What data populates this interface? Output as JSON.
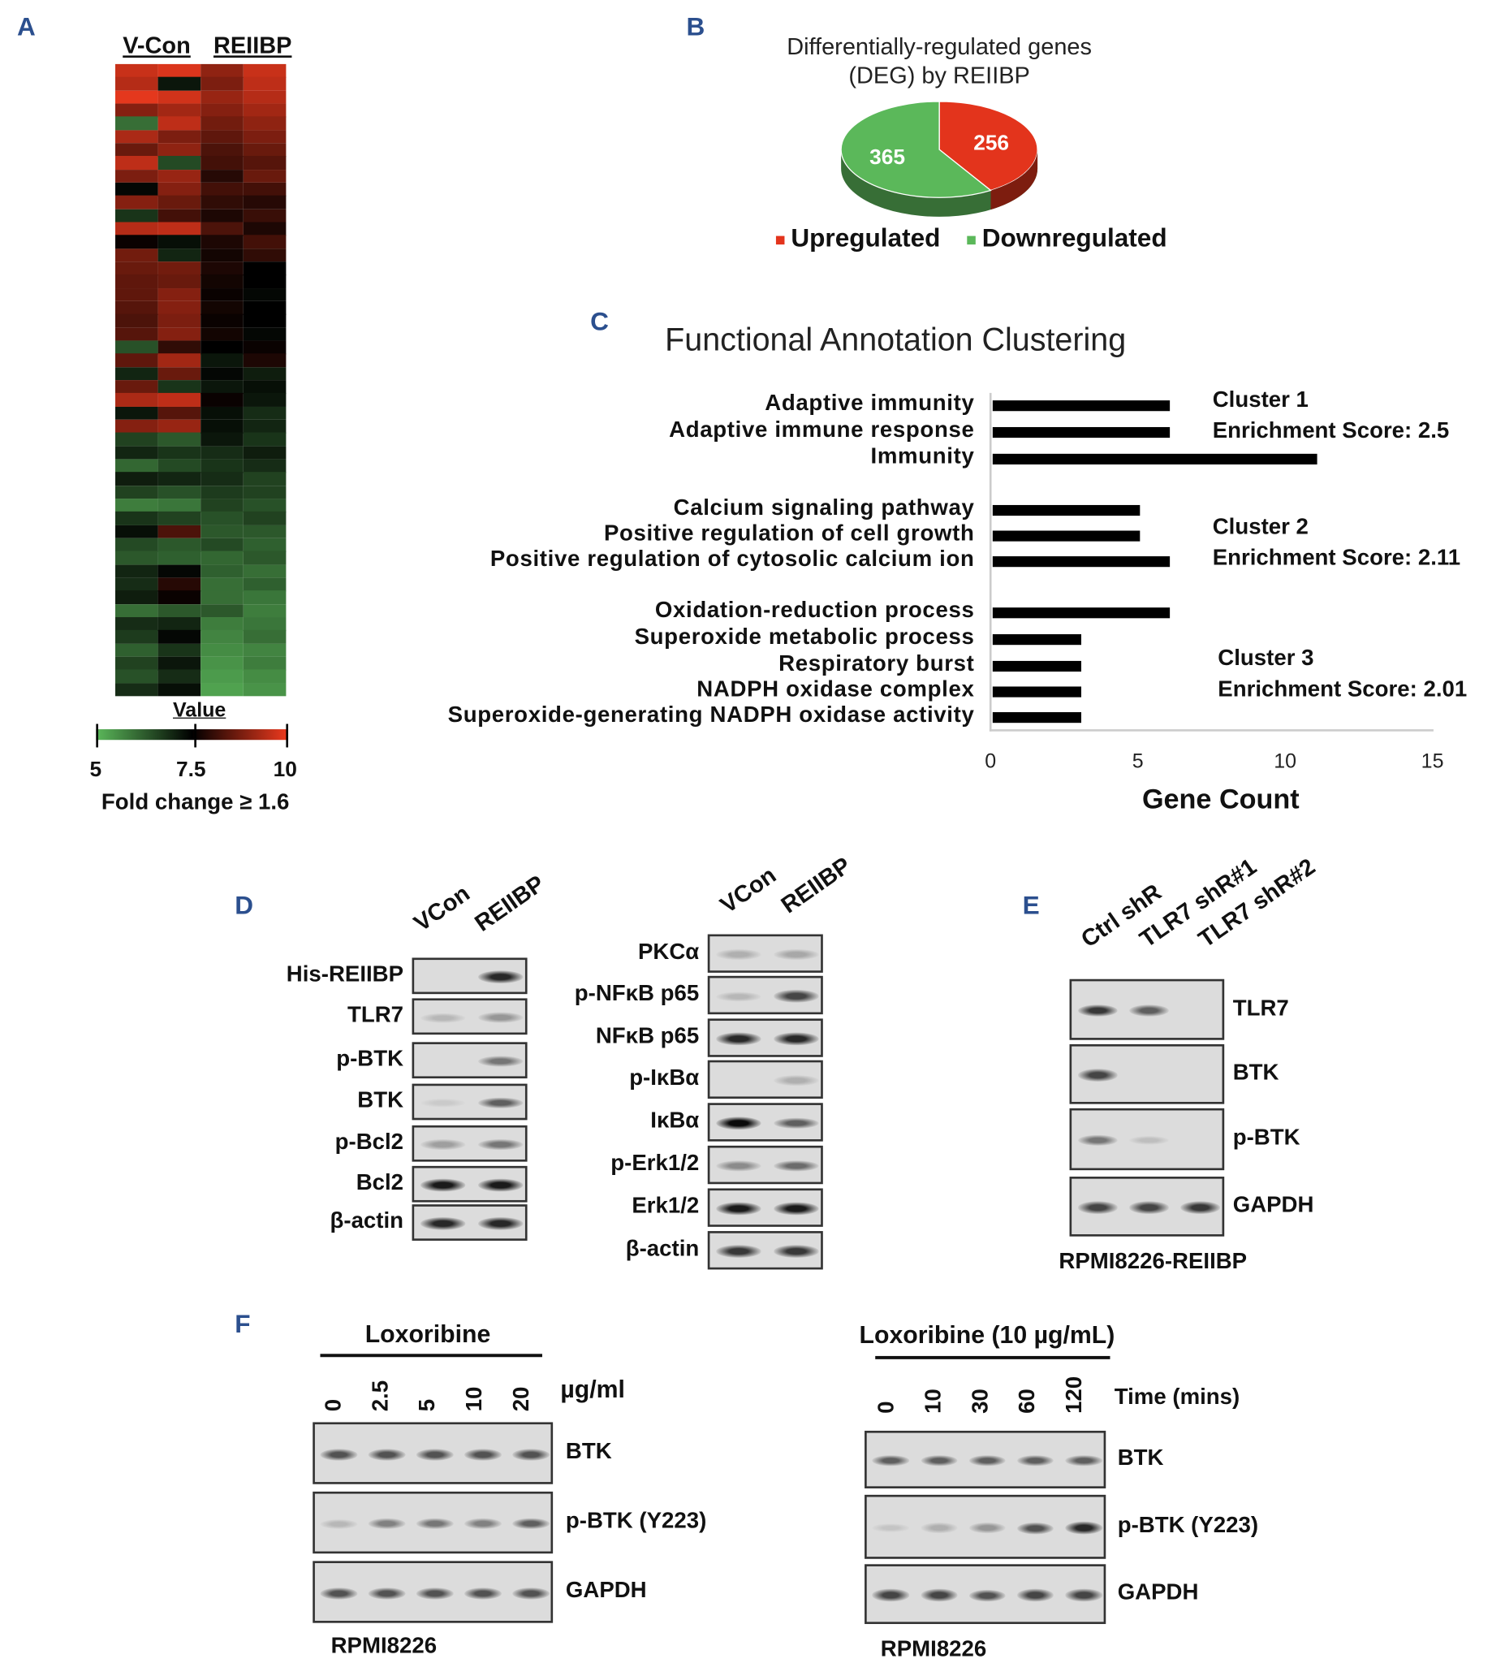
{
  "panels": {
    "a": "A",
    "b": "B",
    "c": "C",
    "d": "D",
    "e": "E",
    "f": "F"
  },
  "colors": {
    "panel_label": "#2b4f8e",
    "red": "#e3341c",
    "green": "#5bb85a",
    "low": "#5bb85a",
    "mid": "#000000",
    "high": "#ee3a1e"
  },
  "heatmap": {
    "col_groups": [
      "V-Con",
      "REIIBP"
    ],
    "legend_title": "Value",
    "legend_ticks": [
      "5",
      "7.5",
      "10"
    ],
    "legend_range": [
      5,
      10
    ],
    "caption": "Fold change ≥ 1.6",
    "rows": [
      [
        9.6,
        9.8,
        9.0,
        9.6
      ],
      [
        9.4,
        7.2,
        8.8,
        9.5
      ],
      [
        9.9,
        9.7,
        9.1,
        9.4
      ],
      [
        8.9,
        9.2,
        8.9,
        9.2
      ],
      [
        6.0,
        9.5,
        8.7,
        9.0
      ],
      [
        9.3,
        8.8,
        8.5,
        8.8
      ],
      [
        8.6,
        9.0,
        8.3,
        8.6
      ],
      [
        9.5,
        6.5,
        8.2,
        8.4
      ],
      [
        8.8,
        9.1,
        7.9,
        8.6
      ],
      [
        7.4,
        8.9,
        8.2,
        8.2
      ],
      [
        8.9,
        8.6,
        8.0,
        7.9
      ],
      [
        6.8,
        8.2,
        7.8,
        8.1
      ],
      [
        9.4,
        9.5,
        8.3,
        7.8
      ],
      [
        7.6,
        7.3,
        7.8,
        8.2
      ],
      [
        8.7,
        7.0,
        7.7,
        8.0
      ],
      [
        8.6,
        8.7,
        7.8,
        7.5
      ],
      [
        8.5,
        8.6,
        7.7,
        7.5
      ],
      [
        8.5,
        8.9,
        7.6,
        7.4
      ],
      [
        8.4,
        8.9,
        7.7,
        7.5
      ],
      [
        8.3,
        8.8,
        7.6,
        7.5
      ],
      [
        8.4,
        8.9,
        7.7,
        7.4
      ],
      [
        6.4,
        8.0,
        7.5,
        7.6
      ],
      [
        8.5,
        9.2,
        7.2,
        7.8
      ],
      [
        7.0,
        8.6,
        7.4,
        7.1
      ],
      [
        8.6,
        6.8,
        7.2,
        7.3
      ],
      [
        9.3,
        9.5,
        7.6,
        7.2
      ],
      [
        7.2,
        8.4,
        7.3,
        6.9
      ],
      [
        8.9,
        9.1,
        7.3,
        7.0
      ],
      [
        6.6,
        6.3,
        7.2,
        6.8
      ],
      [
        7.0,
        6.8,
        6.9,
        7.1
      ],
      [
        6.1,
        6.5,
        6.8,
        6.9
      ],
      [
        7.1,
        7.0,
        6.9,
        6.6
      ],
      [
        6.6,
        6.4,
        6.7,
        6.6
      ],
      [
        5.8,
        5.9,
        6.6,
        6.4
      ],
      [
        6.8,
        6.6,
        6.4,
        6.6
      ],
      [
        7.3,
        8.3,
        6.3,
        6.3
      ],
      [
        6.5,
        6.3,
        6.5,
        6.2
      ],
      [
        6.3,
        6.2,
        6.1,
        6.3
      ],
      [
        7.0,
        7.4,
        6.2,
        6.0
      ],
      [
        6.9,
        7.9,
        6.0,
        6.2
      ],
      [
        7.1,
        7.6,
        6.0,
        5.9
      ],
      [
        6.0,
        6.3,
        6.3,
        5.8
      ],
      [
        6.9,
        7.0,
        5.8,
        5.9
      ],
      [
        6.7,
        7.4,
        5.7,
        6.0
      ],
      [
        6.2,
        6.8,
        5.6,
        5.7
      ],
      [
        6.6,
        7.2,
        5.5,
        5.8
      ],
      [
        6.4,
        6.9,
        5.4,
        5.6
      ],
      [
        6.9,
        7.3,
        5.3,
        5.5
      ]
    ]
  },
  "chart_data": [
    {
      "type": "pie",
      "title": "Differentially-regulated genes (DEG) by REIIBP",
      "title_lines": [
        "Differentially-regulated genes",
        "(DEG) by REIIBP"
      ],
      "slices": [
        {
          "name": "Upregulated",
          "value": 256,
          "color": "#e3341c"
        },
        {
          "name": "Downregulated",
          "value": 365,
          "color": "#5bb85a"
        }
      ],
      "legend": "bottom"
    },
    {
      "type": "bar",
      "orientation": "horizontal",
      "title": "Functional Annotation Clustering",
      "xlabel": "Gene Count",
      "xlim": [
        0,
        15
      ],
      "xticks": [
        "0",
        "5",
        "10",
        "15"
      ],
      "categories": [
        "Adaptive immunity",
        "Adaptive immune response",
        "Immunity",
        "Calcium signaling pathway",
        "Positive regulation of cell growth",
        "Positive regulation of cytosolic calcium ion",
        "Oxidation-reduction process",
        "Superoxide metabolic process",
        "Respiratory burst",
        "NADPH oxidase complex",
        "Superoxide-generating NADPH oxidase activity"
      ],
      "values": [
        6,
        6,
        11,
        5,
        5,
        6,
        6,
        3,
        3,
        3,
        3
      ],
      "clusters": [
        {
          "name": "Cluster 1",
          "score": "Enrichment Score: 2.5"
        },
        {
          "name": "Cluster 2",
          "score": "Enrichment Score: 2.11"
        },
        {
          "name": "Cluster 3",
          "score": "Enrichment Score: 2.01"
        }
      ]
    }
  ],
  "blots": {
    "d_left": {
      "lanes": [
        "VCon",
        "REIIBP"
      ],
      "rows": [
        {
          "label": "His-REIIBP",
          "bands": [
            0,
            0.9
          ]
        },
        {
          "label": "TLR7",
          "bands": [
            0.25,
            0.45
          ]
        },
        {
          "label": "p-BTK",
          "bands": [
            0,
            0.6
          ]
        },
        {
          "label": "BTK",
          "bands": [
            0.1,
            0.7
          ]
        },
        {
          "label": "p-Bcl2",
          "bands": [
            0.4,
            0.6
          ]
        },
        {
          "label": "Bcl2",
          "bands": [
            0.95,
            0.95
          ]
        },
        {
          "label": "β-actin",
          "bands": [
            0.9,
            0.9
          ]
        }
      ]
    },
    "d_right": {
      "lanes": [
        "VCon",
        "REIIBP"
      ],
      "rows": [
        {
          "label": "PKCα",
          "bands": [
            0.3,
            0.35
          ]
        },
        {
          "label": "p-NFκB p65",
          "bands": [
            0.25,
            0.8
          ]
        },
        {
          "label": "NFκB p65",
          "bands": [
            0.9,
            0.9
          ]
        },
        {
          "label": "p-IκBα",
          "bands": [
            0,
            0.3
          ]
        },
        {
          "label": "IκBα",
          "bands": [
            1,
            0.7
          ]
        },
        {
          "label": "p-Erk1/2",
          "bands": [
            0.5,
            0.65
          ]
        },
        {
          "label": "Erk1/2",
          "bands": [
            0.95,
            0.95
          ]
        },
        {
          "label": "β-actin",
          "bands": [
            0.85,
            0.85
          ]
        }
      ]
    },
    "e": {
      "lanes": [
        "Ctrl shR",
        "TLR7 shR#1",
        "TLR7 shR#2"
      ],
      "caption": "RPMI8226-REIIBP",
      "rows": [
        {
          "label": "TLR7",
          "bands": [
            0.85,
            0.7,
            0
          ]
        },
        {
          "label": "BTK",
          "bands": [
            0.8,
            0,
            0
          ]
        },
        {
          "label": "p-BTK",
          "bands": [
            0.6,
            0.2,
            0
          ]
        },
        {
          "label": "GAPDH",
          "bands": [
            0.8,
            0.8,
            0.85
          ]
        }
      ]
    },
    "f_left": {
      "title": "Loxoribine",
      "unit": "µg/ml",
      "lanes": [
        "0",
        "2.5",
        "5",
        "10",
        "20"
      ],
      "caption": "RPMI8226",
      "rows": [
        {
          "label": "BTK",
          "bands": [
            0.75,
            0.75,
            0.75,
            0.75,
            0.75
          ]
        },
        {
          "label": "p-BTK (Y223)",
          "bands": [
            0.25,
            0.55,
            0.6,
            0.55,
            0.7
          ]
        },
        {
          "label": "GAPDH",
          "bands": [
            0.75,
            0.75,
            0.75,
            0.75,
            0.75
          ]
        }
      ]
    },
    "f_right": {
      "title": "Loxoribine (10 µg/mL)",
      "unit": "Time (mins)",
      "lanes": [
        "0",
        "10",
        "30",
        "60",
        "120"
      ],
      "caption": "RPMI8226",
      "rows": [
        {
          "label": "BTK",
          "bands": [
            0.7,
            0.7,
            0.7,
            0.7,
            0.7
          ]
        },
        {
          "label": "p-BTK (Y223)",
          "bands": [
            0.15,
            0.3,
            0.45,
            0.75,
            0.9
          ]
        },
        {
          "label": "GAPDH",
          "bands": [
            0.8,
            0.8,
            0.75,
            0.8,
            0.8
          ]
        }
      ]
    }
  }
}
